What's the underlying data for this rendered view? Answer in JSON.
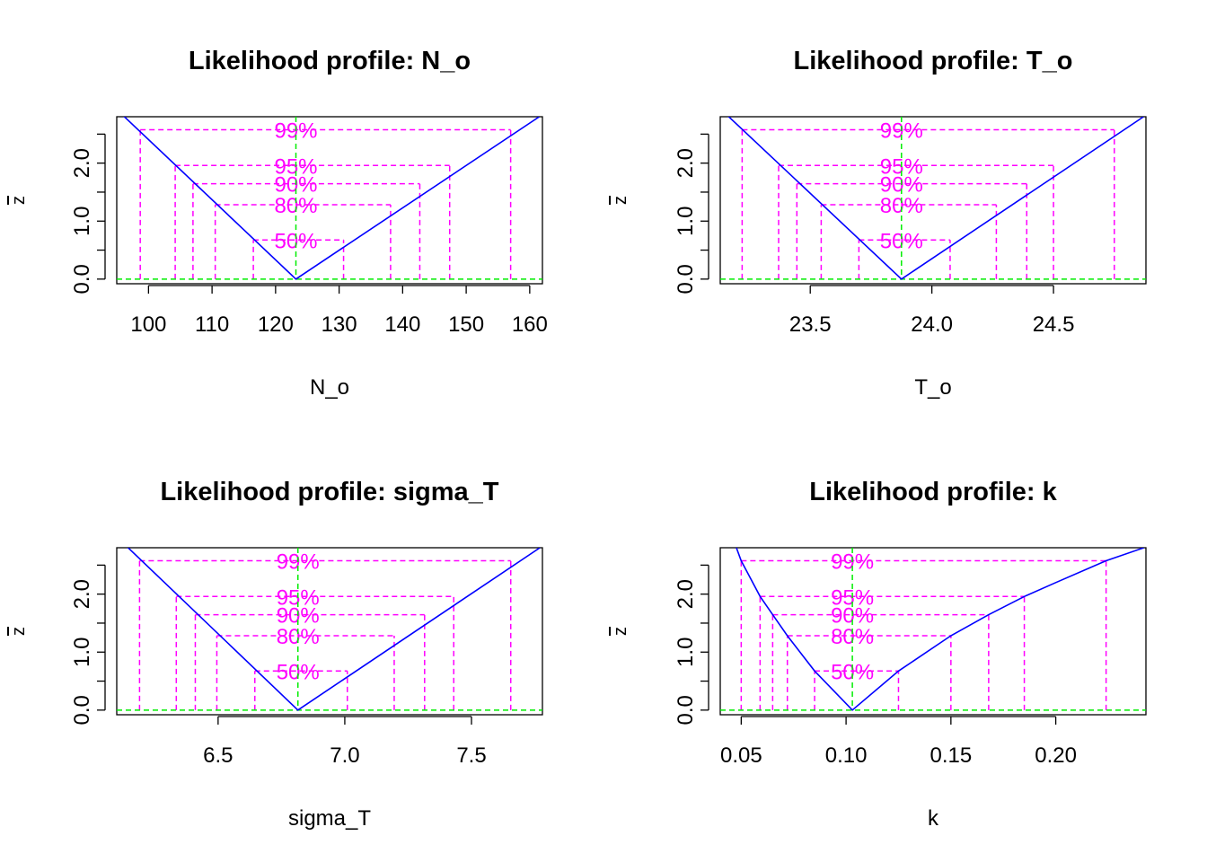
{
  "figure": {
    "background": "#ffffff"
  },
  "colors": {
    "profile": "#0000ff",
    "levels": "#ff00ff",
    "reference": "#00ee00",
    "axes": "#000000"
  },
  "chart_data": [
    {
      "type": "line",
      "title": "Likelihood profile: N_o",
      "xlabel": "N_o",
      "ylabel": "z",
      "xlim": [
        95,
        162
      ],
      "ylim": [
        -0.08,
        2.8
      ],
      "xticks": [
        100,
        110,
        120,
        130,
        140,
        150,
        160
      ],
      "yticks": [
        0,
        0.5,
        1,
        1.5,
        2,
        2.5
      ],
      "ytick_labels": [
        "0.0",
        "1.0",
        "2.0"
      ],
      "labeled_yticks": [
        0,
        1,
        2
      ],
      "estimate": 123.2,
      "profile": {
        "x": [
          96.0,
          123.2,
          161.5
        ],
        "y": [
          2.82,
          0.0,
          2.8
        ]
      },
      "levels": [
        {
          "label": "99%",
          "z": 2.576,
          "lower": 98.7,
          "upper": 157.0
        },
        {
          "label": "95%",
          "z": 1.96,
          "lower": 104.2,
          "upper": 147.4
        },
        {
          "label": "90%",
          "z": 1.645,
          "lower": 107.0,
          "upper": 142.7
        },
        {
          "label": "80%",
          "z": 1.282,
          "lower": 110.5,
          "upper": 138.1
        },
        {
          "label": "50%",
          "z": 0.674,
          "lower": 116.5,
          "upper": 130.7
        }
      ]
    },
    {
      "type": "line",
      "title": "Likelihood profile: T_o",
      "xlabel": "T_o",
      "ylabel": "z",
      "xlim": [
        23.13,
        24.88
      ],
      "ylim": [
        -0.08,
        2.8
      ],
      "xticks": [
        23.5,
        24.0,
        24.5
      ],
      "xtick_labels": [
        "23.5",
        "24.0",
        "24.5"
      ],
      "yticks": [
        0,
        0.5,
        1,
        1.5,
        2,
        2.5
      ],
      "ytick_labels": [
        "0.0",
        "1.0",
        "2.0"
      ],
      "labeled_yticks": [
        0,
        1,
        2
      ],
      "estimate": 23.875,
      "profile": {
        "x": [
          23.16,
          23.875,
          24.87
        ],
        "y": [
          2.82,
          0.0,
          2.8
        ]
      },
      "levels": [
        {
          "label": "99%",
          "z": 2.576,
          "lower": 23.22,
          "upper": 24.75
        },
        {
          "label": "95%",
          "z": 1.96,
          "lower": 23.37,
          "upper": 24.5
        },
        {
          "label": "90%",
          "z": 1.645,
          "lower": 23.445,
          "upper": 24.39
        },
        {
          "label": "80%",
          "z": 1.282,
          "lower": 23.545,
          "upper": 24.265
        },
        {
          "label": "50%",
          "z": 0.674,
          "lower": 23.7,
          "upper": 24.075
        }
      ]
    },
    {
      "type": "line",
      "title": "Likelihood profile: sigma_T",
      "xlabel": "sigma_T",
      "ylabel": "z",
      "xlim": [
        6.1,
        7.78
      ],
      "ylim": [
        -0.08,
        2.8
      ],
      "xticks": [
        6.5,
        7.0,
        7.5
      ],
      "xtick_labels": [
        "6.5",
        "7.0",
        "7.5"
      ],
      "yticks": [
        0,
        0.5,
        1,
        1.5,
        2,
        2.5
      ],
      "ytick_labels": [
        "0.0",
        "1.0",
        "2.0"
      ],
      "labeled_yticks": [
        0,
        1,
        2
      ],
      "estimate": 6.815,
      "profile": {
        "x": [
          6.14,
          6.815,
          7.77
        ],
        "y": [
          2.82,
          0.0,
          2.8
        ]
      },
      "levels": [
        {
          "label": "99%",
          "z": 2.576,
          "lower": 6.19,
          "upper": 7.655
        },
        {
          "label": "95%",
          "z": 1.96,
          "lower": 6.335,
          "upper": 7.43
        },
        {
          "label": "90%",
          "z": 1.645,
          "lower": 6.41,
          "upper": 7.315
        },
        {
          "label": "80%",
          "z": 1.282,
          "lower": 6.495,
          "upper": 7.195
        },
        {
          "label": "50%",
          "z": 0.674,
          "lower": 6.645,
          "upper": 7.01
        }
      ]
    },
    {
      "type": "line",
      "title": "Likelihood profile: k",
      "xlabel": "k",
      "ylabel": "z",
      "xlim": [
        0.04,
        0.243
      ],
      "ylim": [
        -0.08,
        2.8
      ],
      "xticks": [
        0.05,
        0.1,
        0.15,
        0.2
      ],
      "xtick_labels": [
        "0.05",
        "0.10",
        "0.15",
        "0.20"
      ],
      "yticks": [
        0,
        0.5,
        1,
        1.5,
        2,
        2.5
      ],
      "ytick_labels": [
        "0.0",
        "1.0",
        "2.0"
      ],
      "labeled_yticks": [
        0,
        1,
        2
      ],
      "estimate": 0.103,
      "profile": {
        "x": [
          0.0475,
          0.05,
          0.059,
          0.065,
          0.072,
          0.085,
          0.103,
          0.125,
          0.15,
          0.168,
          0.185,
          0.2,
          0.224,
          0.242
        ],
        "y": [
          2.82,
          2.576,
          1.96,
          1.645,
          1.282,
          0.674,
          0.0,
          0.674,
          1.282,
          1.645,
          1.96,
          2.2,
          2.576,
          2.8
        ]
      },
      "levels": [
        {
          "label": "99%",
          "z": 2.576,
          "lower": 0.05,
          "upper": 0.224
        },
        {
          "label": "95%",
          "z": 1.96,
          "lower": 0.059,
          "upper": 0.185
        },
        {
          "label": "90%",
          "z": 1.645,
          "lower": 0.065,
          "upper": 0.168
        },
        {
          "label": "80%",
          "z": 1.282,
          "lower": 0.072,
          "upper": 0.15
        },
        {
          "label": "50%",
          "z": 0.674,
          "lower": 0.085,
          "upper": 0.125
        }
      ]
    }
  ]
}
